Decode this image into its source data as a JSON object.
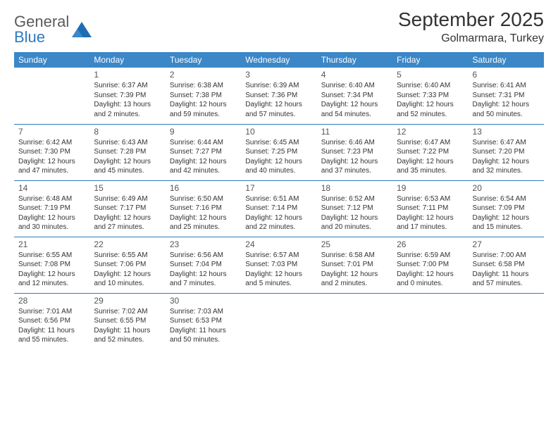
{
  "logo": {
    "text1": "General",
    "text2": "Blue"
  },
  "title": "September 2025",
  "location": "Golmarmara, Turkey",
  "colors": {
    "header_bg": "#3b87c8",
    "header_text": "#ffffff",
    "border": "#2f7bbf",
    "body_text": "#333333",
    "daynum": "#555555",
    "logo_gray": "#5a5a5a",
    "logo_blue": "#2f7bbf",
    "background": "#ffffff"
  },
  "typography": {
    "title_fontsize": 28,
    "location_fontsize": 16,
    "header_fontsize": 12,
    "daynum_fontsize": 12,
    "cell_fontsize": 10
  },
  "days": [
    "Sunday",
    "Monday",
    "Tuesday",
    "Wednesday",
    "Thursday",
    "Friday",
    "Saturday"
  ],
  "layout": {
    "first_weekday_index": 1,
    "num_days": 30
  },
  "cells": {
    "1": {
      "sunrise": "Sunrise: 6:37 AM",
      "sunset": "Sunset: 7:39 PM",
      "daylight1": "Daylight: 13 hours",
      "daylight2": "and 2 minutes."
    },
    "2": {
      "sunrise": "Sunrise: 6:38 AM",
      "sunset": "Sunset: 7:38 PM",
      "daylight1": "Daylight: 12 hours",
      "daylight2": "and 59 minutes."
    },
    "3": {
      "sunrise": "Sunrise: 6:39 AM",
      "sunset": "Sunset: 7:36 PM",
      "daylight1": "Daylight: 12 hours",
      "daylight2": "and 57 minutes."
    },
    "4": {
      "sunrise": "Sunrise: 6:40 AM",
      "sunset": "Sunset: 7:34 PM",
      "daylight1": "Daylight: 12 hours",
      "daylight2": "and 54 minutes."
    },
    "5": {
      "sunrise": "Sunrise: 6:40 AM",
      "sunset": "Sunset: 7:33 PM",
      "daylight1": "Daylight: 12 hours",
      "daylight2": "and 52 minutes."
    },
    "6": {
      "sunrise": "Sunrise: 6:41 AM",
      "sunset": "Sunset: 7:31 PM",
      "daylight1": "Daylight: 12 hours",
      "daylight2": "and 50 minutes."
    },
    "7": {
      "sunrise": "Sunrise: 6:42 AM",
      "sunset": "Sunset: 7:30 PM",
      "daylight1": "Daylight: 12 hours",
      "daylight2": "and 47 minutes."
    },
    "8": {
      "sunrise": "Sunrise: 6:43 AM",
      "sunset": "Sunset: 7:28 PM",
      "daylight1": "Daylight: 12 hours",
      "daylight2": "and 45 minutes."
    },
    "9": {
      "sunrise": "Sunrise: 6:44 AM",
      "sunset": "Sunset: 7:27 PM",
      "daylight1": "Daylight: 12 hours",
      "daylight2": "and 42 minutes."
    },
    "10": {
      "sunrise": "Sunrise: 6:45 AM",
      "sunset": "Sunset: 7:25 PM",
      "daylight1": "Daylight: 12 hours",
      "daylight2": "and 40 minutes."
    },
    "11": {
      "sunrise": "Sunrise: 6:46 AM",
      "sunset": "Sunset: 7:23 PM",
      "daylight1": "Daylight: 12 hours",
      "daylight2": "and 37 minutes."
    },
    "12": {
      "sunrise": "Sunrise: 6:47 AM",
      "sunset": "Sunset: 7:22 PM",
      "daylight1": "Daylight: 12 hours",
      "daylight2": "and 35 minutes."
    },
    "13": {
      "sunrise": "Sunrise: 6:47 AM",
      "sunset": "Sunset: 7:20 PM",
      "daylight1": "Daylight: 12 hours",
      "daylight2": "and 32 minutes."
    },
    "14": {
      "sunrise": "Sunrise: 6:48 AM",
      "sunset": "Sunset: 7:19 PM",
      "daylight1": "Daylight: 12 hours",
      "daylight2": "and 30 minutes."
    },
    "15": {
      "sunrise": "Sunrise: 6:49 AM",
      "sunset": "Sunset: 7:17 PM",
      "daylight1": "Daylight: 12 hours",
      "daylight2": "and 27 minutes."
    },
    "16": {
      "sunrise": "Sunrise: 6:50 AM",
      "sunset": "Sunset: 7:16 PM",
      "daylight1": "Daylight: 12 hours",
      "daylight2": "and 25 minutes."
    },
    "17": {
      "sunrise": "Sunrise: 6:51 AM",
      "sunset": "Sunset: 7:14 PM",
      "daylight1": "Daylight: 12 hours",
      "daylight2": "and 22 minutes."
    },
    "18": {
      "sunrise": "Sunrise: 6:52 AM",
      "sunset": "Sunset: 7:12 PM",
      "daylight1": "Daylight: 12 hours",
      "daylight2": "and 20 minutes."
    },
    "19": {
      "sunrise": "Sunrise: 6:53 AM",
      "sunset": "Sunset: 7:11 PM",
      "daylight1": "Daylight: 12 hours",
      "daylight2": "and 17 minutes."
    },
    "20": {
      "sunrise": "Sunrise: 6:54 AM",
      "sunset": "Sunset: 7:09 PM",
      "daylight1": "Daylight: 12 hours",
      "daylight2": "and 15 minutes."
    },
    "21": {
      "sunrise": "Sunrise: 6:55 AM",
      "sunset": "Sunset: 7:08 PM",
      "daylight1": "Daylight: 12 hours",
      "daylight2": "and 12 minutes."
    },
    "22": {
      "sunrise": "Sunrise: 6:55 AM",
      "sunset": "Sunset: 7:06 PM",
      "daylight1": "Daylight: 12 hours",
      "daylight2": "and 10 minutes."
    },
    "23": {
      "sunrise": "Sunrise: 6:56 AM",
      "sunset": "Sunset: 7:04 PM",
      "daylight1": "Daylight: 12 hours",
      "daylight2": "and 7 minutes."
    },
    "24": {
      "sunrise": "Sunrise: 6:57 AM",
      "sunset": "Sunset: 7:03 PM",
      "daylight1": "Daylight: 12 hours",
      "daylight2": "and 5 minutes."
    },
    "25": {
      "sunrise": "Sunrise: 6:58 AM",
      "sunset": "Sunset: 7:01 PM",
      "daylight1": "Daylight: 12 hours",
      "daylight2": "and 2 minutes."
    },
    "26": {
      "sunrise": "Sunrise: 6:59 AM",
      "sunset": "Sunset: 7:00 PM",
      "daylight1": "Daylight: 12 hours",
      "daylight2": "and 0 minutes."
    },
    "27": {
      "sunrise": "Sunrise: 7:00 AM",
      "sunset": "Sunset: 6:58 PM",
      "daylight1": "Daylight: 11 hours",
      "daylight2": "and 57 minutes."
    },
    "28": {
      "sunrise": "Sunrise: 7:01 AM",
      "sunset": "Sunset: 6:56 PM",
      "daylight1": "Daylight: 11 hours",
      "daylight2": "and 55 minutes."
    },
    "29": {
      "sunrise": "Sunrise: 7:02 AM",
      "sunset": "Sunset: 6:55 PM",
      "daylight1": "Daylight: 11 hours",
      "daylight2": "and 52 minutes."
    },
    "30": {
      "sunrise": "Sunrise: 7:03 AM",
      "sunset": "Sunset: 6:53 PM",
      "daylight1": "Daylight: 11 hours",
      "daylight2": "and 50 minutes."
    }
  }
}
